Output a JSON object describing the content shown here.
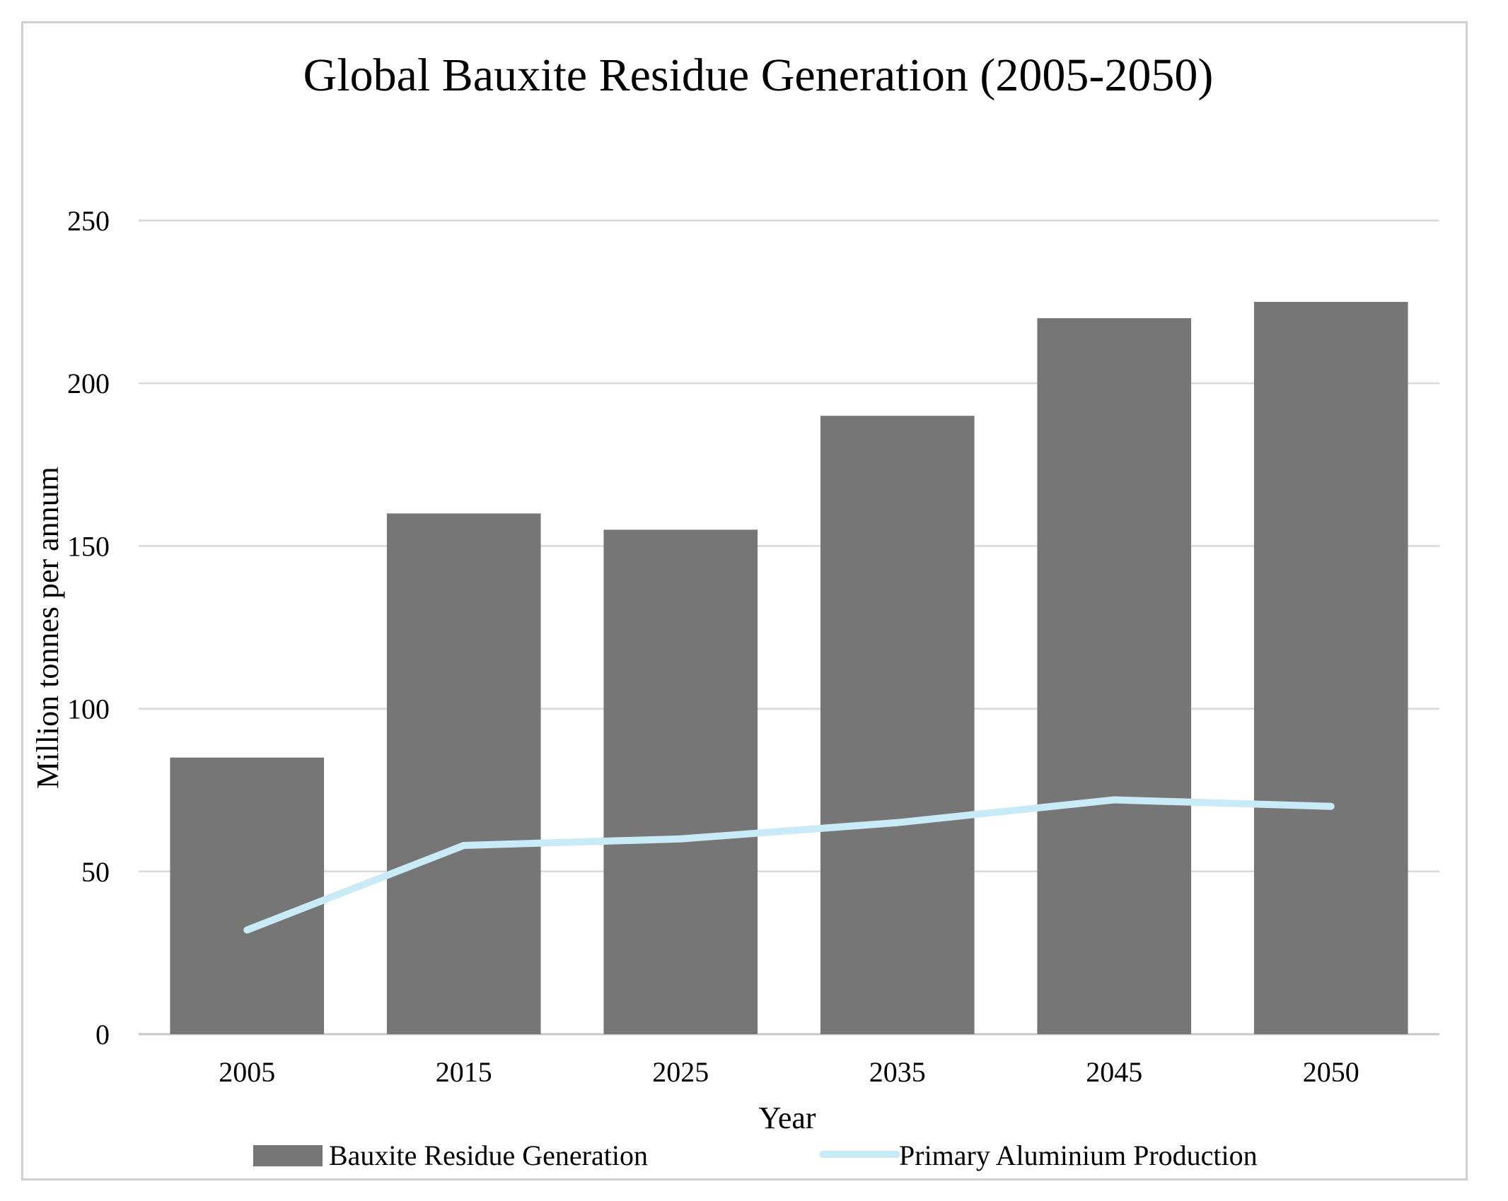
{
  "chart_data": {
    "type": "bar+line",
    "title": "Global Bauxite Residue Generation (2005-2050)",
    "xlabel": "Year",
    "ylabel": "Million tonnes per annum",
    "categories": [
      "2005",
      "2015",
      "2025",
      "2035",
      "2045",
      "2050"
    ],
    "yticks": [
      "0",
      "50",
      "100",
      "150",
      "200",
      "250"
    ],
    "ylim": [
      0,
      250
    ],
    "grid": true,
    "legend_position": "bottom",
    "series": [
      {
        "name": "Bauxite Residue Generation",
        "type": "bar",
        "color": "#767676",
        "values": [
          85,
          160,
          155,
          190,
          220,
          225
        ]
      },
      {
        "name": "Primary Aluminium Production",
        "type": "line",
        "color": "#c9ebf8",
        "values": [
          32,
          58,
          60,
          65,
          72,
          70
        ]
      }
    ]
  }
}
